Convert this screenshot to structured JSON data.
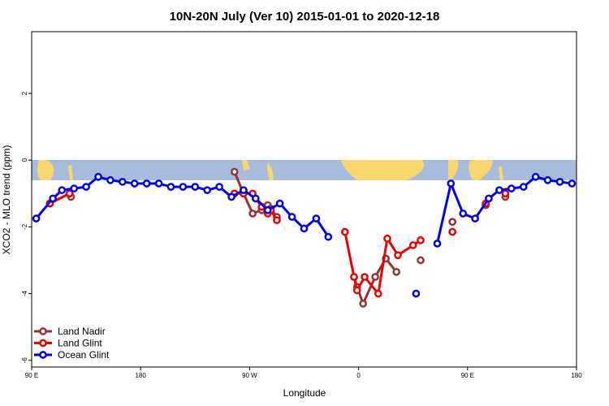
{
  "chart_data": {
    "type": "line",
    "title": "10N-20N July (Ver 10)   2015-01-01 to 2020-12-18",
    "xlabel": "Longitude",
    "ylabel": "XCO2 - MLO trend (ppm)",
    "xlim": [
      0,
      360
    ],
    "ylim": [
      -6.2,
      3.85
    ],
    "x_ticks": [
      {
        "value": 0,
        "label": "90 E"
      },
      {
        "value": 72,
        "label": "180"
      },
      {
        "value": 144,
        "label": "90 W"
      },
      {
        "value": 216,
        "label": "0"
      },
      {
        "value": 288,
        "label": "90 E"
      },
      {
        "value": 360,
        "label": "180"
      }
    ],
    "y_ticks": [
      {
        "value": -6,
        "label": "-6"
      },
      {
        "value": -4,
        "label": "-4"
      },
      {
        "value": -2,
        "label": "-2"
      },
      {
        "value": 0,
        "label": "0"
      },
      {
        "value": 2,
        "label": "2"
      }
    ],
    "map_band": {
      "ymin": -0.6,
      "ymax": 0.0
    },
    "legend_position": "bottom-left",
    "series": [
      {
        "name": "Land Nadir",
        "color": "#993333",
        "segments": [
          [
            [
              12,
              -1.3
            ],
            [
              25,
              -1.0
            ]
          ],
          [
            [
              26,
              -1.1
            ]
          ],
          [
            [
              134,
              -0.35
            ],
            [
              140,
              -1.0
            ],
            [
              146,
              -1.6
            ],
            [
              152,
              -1.5
            ],
            [
              156,
              -1.35
            ],
            [
              158,
              -1.45
            ],
            [
              162,
              -1.7
            ]
          ],
          [
            [
              213,
              -3.5
            ],
            [
              215,
              -3.8
            ],
            [
              219,
              -4.3
            ],
            [
              227,
              -3.5
            ],
            [
              234,
              -2.95
            ],
            [
              241,
              -3.35
            ]
          ],
          [
            [
              257,
              -3.0
            ]
          ],
          [
            [
              278,
              -1.85
            ]
          ],
          [
            [
              300,
              -1.35
            ]
          ],
          [
            [
              313,
              -1.1
            ]
          ]
        ]
      },
      {
        "name": "Land Glint",
        "color": "#ee0000",
        "segments": [
          [
            [
              12,
              -1.3
            ],
            [
              25,
              -1.0
            ]
          ],
          [
            [
              134,
              -1.0
            ],
            [
              140,
              -1.0
            ],
            [
              146,
              -1.0
            ],
            [
              152,
              -1.4
            ],
            [
              156,
              -1.6
            ],
            [
              158,
              -1.5
            ],
            [
              162,
              -1.8
            ]
          ],
          [
            [
              207,
              -2.15
            ],
            [
              213,
              -3.5
            ],
            [
              215,
              -3.9
            ],
            [
              220,
              -3.5
            ],
            [
              229,
              -4.0
            ],
            [
              235,
              -2.35
            ],
            [
              242,
              -2.85
            ],
            [
              252,
              -2.55
            ],
            [
              257,
              -2.4
            ]
          ],
          [
            [
              278,
              -2.15
            ]
          ],
          [
            [
              300,
              -1.3
            ]
          ],
          [
            [
              313,
              -1.0
            ]
          ]
        ]
      },
      {
        "name": "Ocean Glint",
        "color": "#0000ee",
        "segments": [
          [
            [
              3,
              -1.75
            ],
            [
              14,
              -1.15
            ],
            [
              20,
              -0.9
            ],
            [
              28,
              -0.85
            ],
            [
              36,
              -0.8
            ],
            [
              44,
              -0.5
            ],
            [
              52,
              -0.6
            ],
            [
              60,
              -0.65
            ],
            [
              68,
              -0.7
            ],
            [
              76,
              -0.7
            ],
            [
              84,
              -0.7
            ],
            [
              92,
              -0.8
            ],
            [
              100,
              -0.8
            ],
            [
              108,
              -0.8
            ],
            [
              116,
              -0.9
            ],
            [
              124,
              -0.8
            ],
            [
              132,
              -1.1
            ],
            [
              140,
              -0.9
            ],
            [
              148,
              -1.15
            ],
            [
              156,
              -1.5
            ],
            [
              164,
              -1.3
            ],
            [
              172,
              -1.7
            ],
            [
              180,
              -2.05
            ],
            [
              188,
              -1.75
            ],
            [
              196,
              -2.3
            ]
          ],
          [
            [
              254,
              -4.0
            ]
          ],
          [
            [
              268,
              -2.5
            ],
            [
              277,
              -0.7
            ],
            [
              285,
              -1.6
            ],
            [
              293,
              -1.75
            ],
            [
              302,
              -1.15
            ],
            [
              309,
              -0.9
            ],
            [
              317,
              -0.85
            ],
            [
              325,
              -0.8
            ],
            [
              333,
              -0.5
            ],
            [
              341,
              -0.6
            ],
            [
              349,
              -0.65
            ],
            [
              357,
              -0.7
            ]
          ]
        ]
      }
    ]
  }
}
